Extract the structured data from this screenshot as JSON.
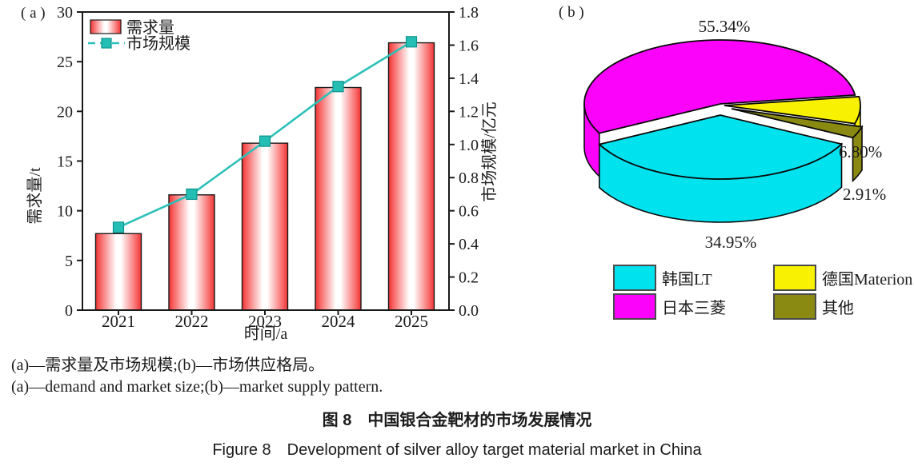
{
  "figure": {
    "panel_a_label": "( a )",
    "panel_b_label": "( b )",
    "caption_zh_sub": "(a)—需求量及市场规模;(b)—市场供应格局。",
    "caption_en_sub": "(a)—demand and market size;(b)—market supply pattern.",
    "caption_zh_title": "图 8　中国银合金靶材的市场发展情况",
    "caption_en_title": "Figure 8　Development of silver alloy target material market in China"
  },
  "chart_data": [
    {
      "id": "a",
      "type": "bar",
      "title": "",
      "categories": [
        "2021",
        "2022",
        "2023",
        "2024",
        "2025"
      ],
      "series": [
        {
          "name": "需求量",
          "type": "bar",
          "yaxis": "left",
          "values": [
            7.7,
            11.6,
            16.8,
            22.4,
            26.9
          ]
        },
        {
          "name": "市场规模",
          "type": "line",
          "yaxis": "right",
          "values": [
            0.5,
            0.7,
            1.02,
            1.35,
            1.62
          ]
        }
      ],
      "xlabel": "时间/a",
      "ylabel_left": "需求量/t",
      "ylabel_right": "市场规模/亿元",
      "ylim_left": [
        0,
        30
      ],
      "ystep_left": 5,
      "ylim_right": [
        0,
        1.8
      ],
      "ystep_right": 0.2,
      "grid": false,
      "legend_position": "top-left",
      "colors": {
        "bar_edge": "#ee3232",
        "bar_edge_soft": "#f75e5e",
        "bar_mid": "#ffffff",
        "bar_outline": "#1a1a1a",
        "line": "#2bc0b8",
        "marker": "#24beb5",
        "marker_edge": "#0f958e",
        "axis": "#1a1a1a"
      }
    },
    {
      "id": "b",
      "type": "pie",
      "style": "pie3d",
      "start_angle_deg": 8,
      "slices": [
        {
          "label": "日本三菱",
          "value": 55.34,
          "pct_label": "55.34%",
          "color": "#fb02fb"
        },
        {
          "label": "韩国LT",
          "value": 34.95,
          "pct_label": "34.95%",
          "color": "#00e2ee"
        },
        {
          "label": "其他",
          "value": 2.91,
          "pct_label": "2.91%",
          "color": "#8a8a12"
        },
        {
          "label": "德国Materion",
          "value": 6.8,
          "pct_label": "6.80%",
          "color": "#f8f101"
        }
      ],
      "outline_color": "#0a0a0a",
      "legend": [
        {
          "label": "韩国LT",
          "color": "#00e2ee"
        },
        {
          "label": "日本三菱",
          "color": "#fb02fb"
        },
        {
          "label": "德国Materion",
          "color": "#f8f101"
        },
        {
          "label": "其他",
          "color": "#8a8a12"
        }
      ],
      "legend_position": "bottom"
    }
  ]
}
